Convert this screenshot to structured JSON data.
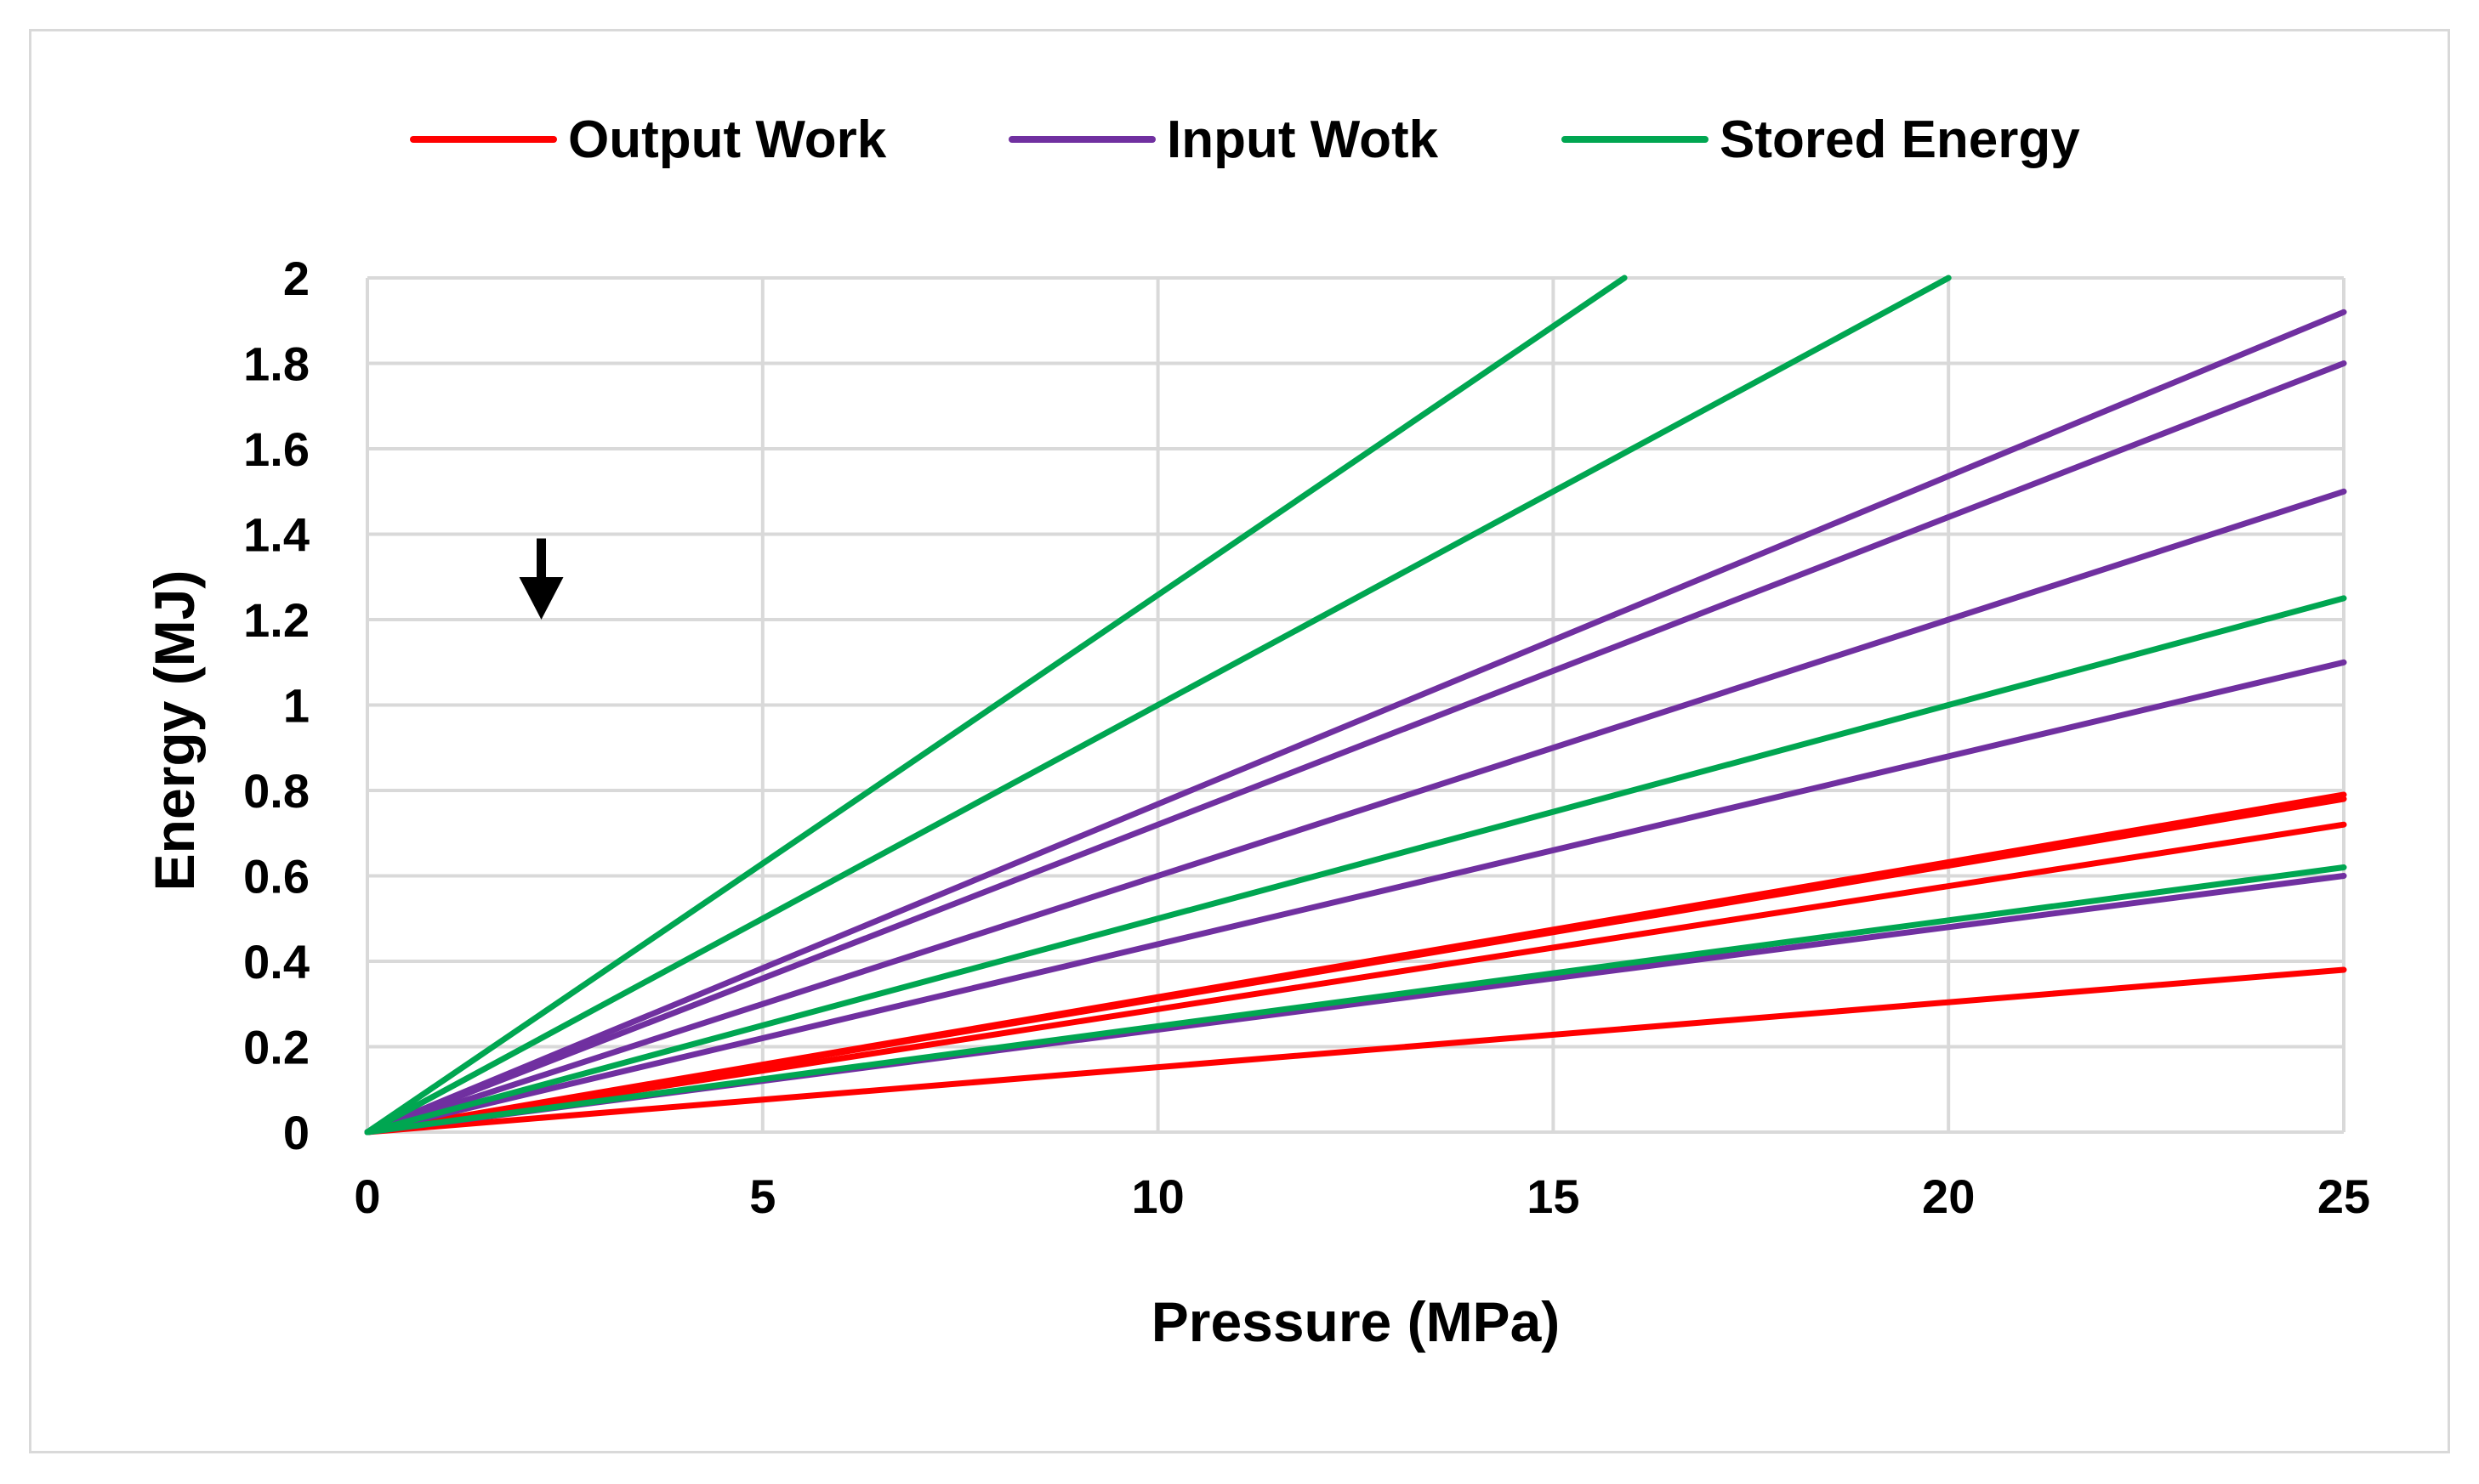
{
  "chart_data": {
    "type": "line",
    "title": "",
    "xlabel": "Pressure (MPa)",
    "ylabel": "Energy (MJ)",
    "xlim": [
      0,
      25
    ],
    "ylim": [
      0,
      2
    ],
    "xticks": [
      "0",
      "5",
      "10",
      "15",
      "20",
      "25"
    ],
    "yticks": [
      "0",
      "0.2",
      "0.4",
      "0.6",
      "0.8",
      "1",
      "1.2",
      "1.4",
      "1.6",
      "1.8",
      "2"
    ],
    "grid": true,
    "legend_position": "top",
    "legend": [
      {
        "name": "Output Work",
        "color": "#ff0000"
      },
      {
        "name": "Input Wotk",
        "color": "#7030a0"
      },
      {
        "name": "Stored Energy",
        "color": "#00a651"
      }
    ],
    "annotations": [
      {
        "type": "arrow-down",
        "x": 2.2,
        "y_top": 1.39,
        "y_bottom": 1.2
      }
    ],
    "series": [
      {
        "group": "Output Work",
        "color": "#ff0000",
        "x": [
          0,
          25
        ],
        "y": [
          0,
          0.38
        ]
      },
      {
        "group": "Output Work",
        "color": "#ff0000",
        "x": [
          0,
          25
        ],
        "y": [
          0,
          0.72
        ]
      },
      {
        "group": "Output Work",
        "color": "#ff0000",
        "x": [
          0,
          25
        ],
        "y": [
          0,
          0.78
        ]
      },
      {
        "group": "Output Work",
        "color": "#ff0000",
        "x": [
          0,
          25
        ],
        "y": [
          0,
          0.79
        ]
      },
      {
        "group": "Input Wotk",
        "color": "#7030a0",
        "x": [
          0,
          25
        ],
        "y": [
          0,
          0.6
        ]
      },
      {
        "group": "Input Wotk",
        "color": "#7030a0",
        "x": [
          0,
          25
        ],
        "y": [
          0,
          1.1
        ]
      },
      {
        "group": "Input Wotk",
        "color": "#7030a0",
        "x": [
          0,
          25
        ],
        "y": [
          0,
          1.5
        ]
      },
      {
        "group": "Input Wotk",
        "color": "#7030a0",
        "x": [
          0,
          25
        ],
        "y": [
          0,
          1.8
        ]
      },
      {
        "group": "Input Wotk",
        "color": "#7030a0",
        "x": [
          0,
          25
        ],
        "y": [
          0,
          1.92
        ]
      },
      {
        "group": "Stored Energy",
        "color": "#00a651",
        "x": [
          0,
          25
        ],
        "y": [
          0,
          0.62
        ]
      },
      {
        "group": "Stored Energy",
        "color": "#00a651",
        "x": [
          0,
          25
        ],
        "y": [
          0,
          1.25
        ]
      },
      {
        "group": "Stored Energy",
        "color": "#00a651",
        "x": [
          0,
          20
        ],
        "y": [
          0,
          2.0
        ]
      },
      {
        "group": "Stored Energy",
        "color": "#00a651",
        "x": [
          0,
          15.9
        ],
        "y": [
          0,
          2.0
        ]
      }
    ]
  }
}
